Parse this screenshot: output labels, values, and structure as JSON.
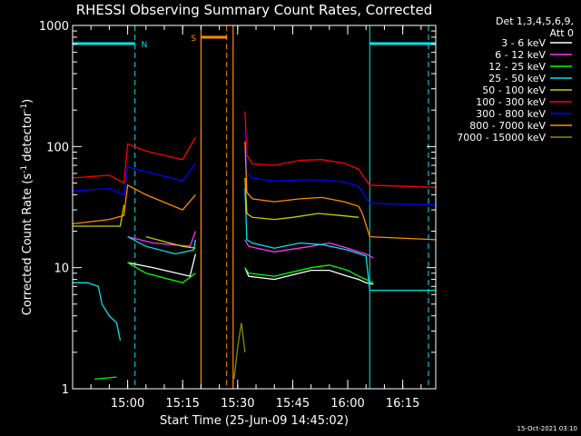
{
  "chart_data": {
    "type": "line",
    "title": "RHESSI Observing Summary Count Rates, Corrected",
    "xlabel": "Start Time (25-Jun-09 14:45:02)",
    "ylabel": "Corrected Count Rate (s⁻¹ detector⁻¹)",
    "ylabel_main": "Corrected Count Rate (s",
    "ylabel_sup1": "-1",
    "ylabel_mid": " detector",
    "ylabel_sup2": "-1",
    "ylabel_end": ")",
    "yscale": "log",
    "ylim": [
      1,
      1000
    ],
    "xlim_min": [
      0,
      99
    ],
    "ytick_labels": [
      "1",
      "10",
      "100",
      "1000"
    ],
    "xtick_labels": [
      "15:00",
      "15:15",
      "15:30",
      "15:45",
      "16:00",
      "16:15"
    ],
    "xticks_min": [
      15,
      30,
      45,
      60,
      75,
      90
    ],
    "legend_header": [
      "Det 1,3,4,5,6,9,",
      "Att 0"
    ],
    "timestamp": "15-Oct-2021 03:10",
    "flags": [
      {
        "label": "N",
        "color": "#00e5ee",
        "start": 0,
        "end": 17,
        "line_at": 17
      },
      {
        "label": "S",
        "color": "#ff8c00",
        "start": 35,
        "end": 42,
        "line_at": 42
      },
      {
        "label": "",
        "color": "#00e5ee",
        "start": 81,
        "end": 99,
        "line_at": 81
      }
    ],
    "night_lines": [
      17,
      81,
      99
    ],
    "gap": [
      35,
      44
    ],
    "series": [
      {
        "name": "3 - 6 keV",
        "color": "#ffffff",
        "x": [
          0,
          14,
          15,
          22,
          32,
          33.5,
          34,
          47,
          48,
          55,
          65,
          70,
          75,
          78,
          80,
          82
        ],
        "y": [
          null,
          null,
          11,
          10,
          8.5,
          13,
          null,
          10,
          8.5,
          8,
          9.5,
          9.5,
          8.5,
          8,
          7.5,
          7.3
        ]
      },
      {
        "name": "6 - 12 keV",
        "color": "#ff33ff",
        "x": [
          14,
          15,
          22,
          32,
          33.5,
          34,
          47,
          48,
          55,
          65,
          70,
          75,
          78,
          80,
          82
        ],
        "y": [
          null,
          18,
          16,
          15,
          20,
          null,
          17,
          15,
          13.5,
          15,
          16,
          14.5,
          13.5,
          13,
          12
        ]
      },
      {
        "name": "12 - 25 keV",
        "color": "#00ff00",
        "x": [
          0,
          6,
          12,
          14,
          15,
          20,
          30,
          33.5,
          34,
          47,
          48,
          55,
          65,
          70,
          75,
          78,
          80,
          82
        ],
        "y": [
          null,
          1.2,
          1.25,
          null,
          11,
          9,
          7.5,
          9,
          null,
          10,
          9,
          8.5,
          10,
          10.5,
          9.5,
          8.5,
          8,
          7.5
        ]
      },
      {
        "name": "25 - 50 keV",
        "color": "#00e5ee",
        "x": [
          0,
          4,
          7,
          8,
          10,
          12,
          13,
          14,
          15,
          20,
          28,
          33,
          33.5,
          34,
          47,
          47.5,
          49,
          55,
          62,
          68,
          75,
          80,
          81,
          99
        ],
        "y": [
          7.5,
          7.5,
          7,
          5,
          4,
          3.5,
          2.5,
          null,
          18,
          15,
          13,
          14,
          17,
          null,
          45,
          17,
          16,
          14.5,
          16,
          15.5,
          14,
          12.5,
          6.5,
          6.5
        ]
      },
      {
        "name": "50 - 100 keV",
        "color": "#cccc00",
        "x": [
          0,
          10,
          13,
          14,
          15,
          20,
          30,
          33.5,
          34,
          47,
          47.5,
          49,
          55,
          60,
          67,
          73,
          78
        ],
        "y": [
          22,
          22,
          22,
          33,
          null,
          18,
          15,
          14.5,
          null,
          55,
          28,
          26,
          25,
          26,
          28,
          27,
          26
        ]
      },
      {
        "name": "100 - 300 keV",
        "color": "#ff0000",
        "x": [
          0,
          10,
          14,
          15,
          20,
          30,
          33.5,
          34,
          47,
          47.5,
          49,
          55,
          62,
          68,
          74,
          78,
          79,
          81,
          99
        ],
        "y": [
          55,
          58,
          50,
          105,
          92,
          78,
          120,
          null,
          195,
          85,
          72,
          70,
          77,
          78,
          73,
          65,
          58,
          48,
          46
        ]
      },
      {
        "name": "300 - 800 keV",
        "color": "#0000ff",
        "x": [
          0,
          10,
          14,
          15,
          20,
          30,
          33.5,
          34,
          47,
          47.5,
          49,
          55,
          62,
          68,
          74,
          78,
          79,
          81,
          99
        ],
        "y": [
          43,
          45,
          40,
          68,
          62,
          52,
          73,
          null,
          135,
          60,
          55,
          52,
          53,
          53,
          51,
          47,
          42,
          34,
          33
        ]
      },
      {
        "name": "800 - 7000 keV",
        "color": "#ff8c00",
        "x": [
          0,
          10,
          14,
          15,
          20,
          30,
          33.5,
          34,
          47,
          47.5,
          49,
          55,
          62,
          68,
          74,
          78,
          79,
          81,
          99
        ],
        "y": [
          23,
          25,
          27,
          48,
          40,
          30,
          40,
          null,
          110,
          42,
          37,
          35,
          37,
          38,
          35,
          32,
          28,
          18,
          17
        ]
      },
      {
        "name": "7000 - 15000 keV",
        "color": "#8b8b00",
        "x": [
          0,
          44,
          45,
          46,
          47
        ],
        "y": [
          null,
          1.2,
          2.2,
          3.5,
          2
        ]
      }
    ]
  }
}
